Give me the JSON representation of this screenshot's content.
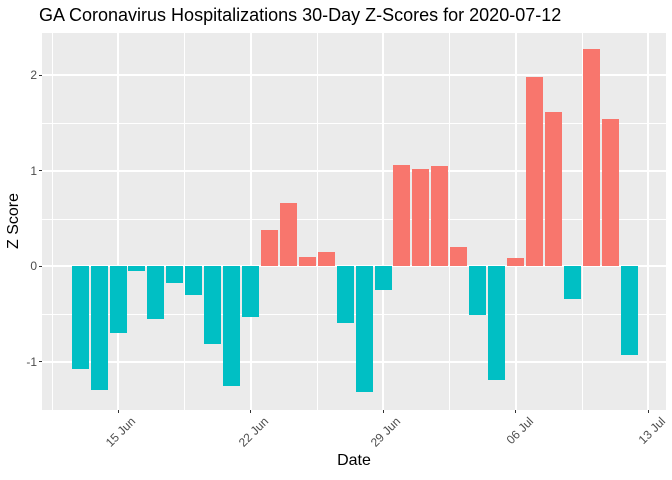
{
  "chart_data": {
    "type": "bar",
    "title": "GA Coronavirus Hospitalizations 30-Day Z-Scores for 2020-07-12",
    "xlabel": "Date",
    "ylabel": "Z Score",
    "categories": [
      "2020-06-13",
      "2020-06-14",
      "2020-06-15",
      "2020-06-16",
      "2020-06-17",
      "2020-06-18",
      "2020-06-19",
      "2020-06-20",
      "2020-06-21",
      "2020-06-22",
      "2020-06-23",
      "2020-06-24",
      "2020-06-25",
      "2020-06-26",
      "2020-06-27",
      "2020-06-28",
      "2020-06-29",
      "2020-06-30",
      "2020-07-01",
      "2020-07-02",
      "2020-07-03",
      "2020-07-04",
      "2020-07-05",
      "2020-07-06",
      "2020-07-07",
      "2020-07-08",
      "2020-07-09",
      "2020-07-10",
      "2020-07-11",
      "2020-07-12"
    ],
    "values": [
      -1.07,
      -1.29,
      -0.7,
      -0.05,
      -0.55,
      -0.17,
      -0.3,
      -0.81,
      -1.25,
      -0.53,
      0.38,
      0.66,
      0.1,
      0.15,
      -0.59,
      -1.32,
      -0.25,
      1.06,
      1.02,
      1.05,
      0.2,
      -0.51,
      -1.19,
      0.09,
      1.98,
      1.61,
      -0.34,
      2.27,
      1.54,
      -0.93
    ],
    "x_tick_labels": [
      "15 Jun",
      "22 Jun",
      "29 Jun",
      "06 Jul",
      "13 Jul"
    ],
    "x_tick_day_index": [
      2,
      9,
      16,
      23,
      30
    ],
    "x_minor_day_index": [
      -1.5,
      5.5,
      12.5,
      19.5,
      26.5
    ],
    "y_ticks": [
      2,
      1,
      0,
      -1
    ],
    "y_tick_labels": [
      "2",
      "1",
      "0",
      "-1"
    ],
    "y_minor_gridlines": [
      1.5,
      0.5,
      -0.5
    ],
    "ylim": [
      -1.5,
      2.44
    ],
    "grid": true,
    "legend_position": "none",
    "colors": {
      "positive": "#F8766D",
      "negative": "#00BFC4",
      "panel_background": "#EBEBEB",
      "gridline": "#FFFFFF",
      "tick_mark": "#333333",
      "tick_label": "#4D4D4D",
      "text": "#000000"
    }
  }
}
